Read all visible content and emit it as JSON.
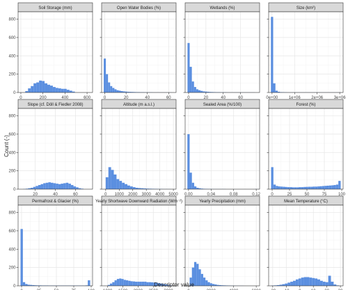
{
  "figure": {
    "ylabel": "Count (-)",
    "xlabel": "Descriptor value"
  },
  "colors": {
    "bar": "#5b8fe0",
    "strip": "#d9d9d9",
    "panel_border": "#333333",
    "grid_major": "#e6e6e6",
    "grid_minor": "#f3f3f3"
  },
  "chart_data": [
    {
      "type": "bar",
      "title": "Soil Storage (mm)",
      "xlim": [
        -25,
        650
      ],
      "ylim": [
        0,
        880
      ],
      "x_ticks": [
        0,
        200,
        400,
        600
      ],
      "x_tick_labels": [
        "0",
        "200",
        "400",
        "600"
      ],
      "y_ticks": [
        0,
        200,
        400,
        600,
        800
      ],
      "y_tick_labels": [
        "0",
        "200",
        "400",
        "600",
        "800"
      ],
      "bin_start": 40,
      "bin_width": 25,
      "values": [
        15,
        45,
        70,
        100,
        110,
        130,
        125,
        100,
        85,
        75,
        60,
        50,
        45,
        40,
        40,
        30,
        20,
        10
      ]
    },
    {
      "type": "bar",
      "title": "Open Water Bodies (%)",
      "xlim": [
        -3,
        67
      ],
      "ylim": [
        0,
        880
      ],
      "x_ticks": [
        0,
        20,
        40,
        60
      ],
      "x_tick_labels": [
        "0",
        "20",
        "40",
        "60"
      ],
      "y_ticks": [
        0,
        200,
        400,
        600,
        800
      ],
      "y_tick_labels": [
        "",
        "",
        "",
        "",
        ""
      ],
      "bin_start": -1,
      "bin_width": 2,
      "values": [
        370,
        200,
        110,
        70,
        50,
        35,
        25,
        20,
        15,
        12,
        10,
        8,
        7,
        6,
        5,
        4,
        4,
        3,
        3,
        2,
        2,
        2,
        2,
        1,
        1,
        1,
        1,
        1,
        1,
        1,
        1,
        1
      ]
    },
    {
      "type": "bar",
      "title": "Wetlands (%)",
      "xlim": [
        -4,
        82
      ],
      "ylim": [
        0,
        880
      ],
      "x_ticks": [
        0,
        20,
        40,
        60
      ],
      "x_tick_labels": [
        "0",
        "20",
        "40",
        "60"
      ],
      "y_ticks": [
        0,
        200,
        400,
        600,
        800
      ],
      "y_tick_labels": [
        "",
        "",
        "",
        "",
        ""
      ],
      "bin_start": -1.25,
      "bin_width": 2.5,
      "values": [
        540,
        280,
        120,
        60,
        35,
        25,
        18,
        12,
        10,
        8,
        6,
        5,
        4,
        3,
        3,
        2,
        2,
        2,
        1,
        1,
        1,
        1,
        1,
        1,
        1,
        1,
        1,
        1,
        1,
        1,
        1
      ]
    },
    {
      "type": "bar",
      "title": "Size (km²)",
      "xlim": [
        -150000,
        3150000
      ],
      "ylim": [
        0,
        880
      ],
      "x_ticks": [
        0,
        1000000,
        2000000,
        3000000
      ],
      "x_tick_labels": [
        "0e+00",
        "1e+06",
        "2e+06",
        "3e+06"
      ],
      "y_ticks": [
        0,
        200,
        400,
        600,
        800
      ],
      "y_tick_labels": [
        "",
        "",
        "",
        "",
        ""
      ],
      "bin_start": -50000,
      "bin_width": 100000,
      "values": [
        825,
        100,
        20,
        8,
        4,
        3,
        2,
        1,
        1,
        1,
        1,
        1,
        1,
        1,
        1,
        1,
        1,
        1,
        1,
        1,
        1,
        1,
        1,
        1,
        1,
        1,
        1,
        1,
        1,
        1,
        1
      ]
    },
    {
      "type": "bar",
      "title": "Slope (cf. Döll & Fiedler 2008)",
      "xlim": [
        3,
        77
      ],
      "ylim": [
        0,
        880
      ],
      "x_ticks": [
        20,
        40,
        60
      ],
      "x_tick_labels": [
        "20",
        "40",
        "60"
      ],
      "y_ticks": [
        0,
        200,
        400,
        600,
        800
      ],
      "y_tick_labels": [
        "0",
        "200",
        "400",
        "600",
        "800"
      ],
      "bin_start": 8,
      "bin_width": 2.5,
      "values": [
        2,
        5,
        10,
        15,
        25,
        35,
        45,
        55,
        65,
        70,
        75,
        70,
        65,
        60,
        55,
        60,
        65,
        70,
        60,
        45,
        30,
        20,
        10,
        5
      ]
    },
    {
      "type": "bar",
      "title": "Altitude (m a.s.l.)",
      "xlim": [
        -300,
        5200
      ],
      "ylim": [
        0,
        880
      ],
      "x_ticks": [
        0,
        1000,
        2000,
        3000,
        4000,
        5000
      ],
      "x_tick_labels": [
        "0",
        "1000",
        "2000",
        "3000",
        "4000",
        "5000"
      ],
      "y_ticks": [
        0,
        200,
        400,
        600,
        800
      ],
      "y_tick_labels": [
        "",
        "",
        "",
        "",
        ""
      ],
      "bin_start": 0,
      "bin_width": 200,
      "values": [
        130,
        240,
        210,
        160,
        110,
        90,
        70,
        55,
        40,
        30,
        22,
        15,
        12,
        10,
        8,
        6,
        5,
        4,
        3,
        2,
        2,
        1,
        1,
        1
      ]
    },
    {
      "type": "bar",
      "title": "Sealed Area (%/100)",
      "xlim": [
        -0.006,
        0.126
      ],
      "ylim": [
        0,
        880
      ],
      "x_ticks": [
        0,
        0.04,
        0.08,
        0.12
      ],
      "x_tick_labels": [
        "0.00",
        "0.04",
        "0.08",
        "0.12"
      ],
      "y_ticks": [
        0,
        200,
        400,
        600,
        800
      ],
      "y_tick_labels": [
        "",
        "",
        "",
        "",
        ""
      ],
      "bin_start": -0.002,
      "bin_width": 0.004,
      "values": [
        600,
        180,
        70,
        30,
        15,
        10,
        6,
        4,
        3,
        2,
        2,
        1,
        1,
        1,
        1,
        1,
        1,
        0,
        0,
        0,
        0,
        0,
        0,
        0,
        0,
        0,
        0,
        0,
        0,
        0,
        1
      ]
    },
    {
      "type": "bar",
      "title": "Forest (%)",
      "xlim": [
        -5,
        102
      ],
      "ylim": [
        0,
        880
      ],
      "x_ticks": [
        0,
        25,
        50,
        75,
        100
      ],
      "x_tick_labels": [
        "0",
        "25",
        "50",
        "75",
        "100"
      ],
      "y_ticks": [
        0,
        200,
        400,
        600,
        800
      ],
      "y_tick_labels": [
        "",
        "",
        "",
        "",
        ""
      ],
      "bin_start": -1.5,
      "bin_width": 3.333,
      "values": [
        240,
        50,
        35,
        30,
        28,
        26,
        24,
        22,
        22,
        20,
        20,
        20,
        22,
        22,
        24,
        25,
        26,
        26,
        28,
        28,
        30,
        32,
        34,
        36,
        38,
        40,
        42,
        45,
        50,
        90
      ]
    },
    {
      "type": "bar",
      "title": "Permafrost & Glacier (%)",
      "xlim": [
        -5,
        102
      ],
      "ylim": [
        0,
        880
      ],
      "x_ticks": [
        0,
        25,
        50,
        75,
        100
      ],
      "x_tick_labels": [
        "0",
        "25",
        "50",
        "75",
        "100"
      ],
      "y_ticks": [
        0,
        200,
        400,
        600,
        800
      ],
      "y_tick_labels": [
        "0",
        "200",
        "400",
        "600",
        "800"
      ],
      "bin_start": -1.5,
      "bin_width": 3.333,
      "values": [
        620,
        40,
        20,
        12,
        10,
        8,
        6,
        5,
        5,
        4,
        4,
        4,
        3,
        3,
        3,
        3,
        3,
        3,
        3,
        3,
        3,
        3,
        3,
        3,
        3,
        3,
        3,
        3,
        5,
        60
      ]
    },
    {
      "type": "bar",
      "title": "Yearly Shortwave Downward Radiation (Wm⁻²)",
      "xlim": [
        800,
        3250
      ],
      "ylim": [
        0,
        880
      ],
      "x_ticks": [
        1000,
        1500,
        2000,
        2500,
        3000
      ],
      "x_tick_labels": [
        "1000",
        "1500",
        "2000",
        "2500",
        "3000"
      ],
      "y_ticks": [
        0,
        200,
        400,
        600,
        800
      ],
      "y_tick_labels": [
        "",
        "",
        "",
        "",
        ""
      ],
      "bin_start": 1000,
      "bin_width": 75,
      "values": [
        10,
        25,
        40,
        60,
        75,
        80,
        75,
        65,
        60,
        55,
        50,
        48,
        45,
        45,
        45,
        45,
        45,
        40,
        40,
        38,
        36,
        35,
        30,
        25,
        20,
        15,
        10,
        5
      ]
    },
    {
      "type": "bar",
      "title": "Yearly Precipitation (mm)",
      "xlim": [
        -300,
        6300
      ],
      "ylim": [
        0,
        880
      ],
      "x_ticks": [
        0,
        2000,
        4000,
        6000
      ],
      "x_tick_labels": [
        "0",
        "2000",
        "4000",
        "6000"
      ],
      "y_ticks": [
        0,
        200,
        400,
        600,
        800
      ],
      "y_tick_labels": [
        "",
        "",
        "",
        "",
        ""
      ],
      "bin_start": 100,
      "bin_width": 200,
      "values": [
        90,
        200,
        260,
        240,
        180,
        130,
        90,
        60,
        40,
        28,
        20,
        15,
        10,
        8,
        6,
        5,
        4,
        3,
        2,
        2,
        1,
        1,
        1,
        1
      ]
    },
    {
      "type": "bar",
      "title": "Mean Temperature (°C)",
      "xlim": [
        -23,
        32
      ],
      "ylim": [
        0,
        880
      ],
      "x_ticks": [
        -20,
        -10,
        0,
        10,
        20,
        30
      ],
      "x_tick_labels": [
        "-20",
        "-10",
        "0",
        "10",
        "20",
        "30"
      ],
      "y_ticks": [
        0,
        200,
        400,
        600,
        800
      ],
      "y_tick_labels": [
        "",
        "",
        "",
        "",
        ""
      ],
      "bin_start": -21,
      "bin_width": 2,
      "values": [
        3,
        5,
        8,
        12,
        18,
        25,
        35,
        45,
        55,
        70,
        80,
        90,
        95,
        95,
        90,
        85,
        80,
        70,
        55,
        45,
        40,
        110,
        45,
        15,
        5
      ]
    }
  ]
}
